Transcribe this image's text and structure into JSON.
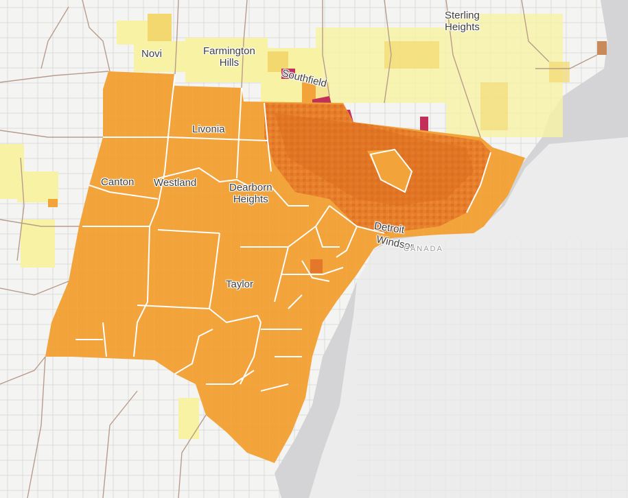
{
  "map": {
    "labels": {
      "novi": "Novi",
      "farmington_hills": "Farmington\nHills",
      "southfield": "Southfield",
      "sterling_heights": "Sterling\nHeights",
      "livonia": "Livonia",
      "canton": "Canton",
      "westland": "Westland",
      "dearborn_heights": "Dearborn\nHeights",
      "detroit": "Detroit",
      "windsor": "Windsor",
      "canada": "CANADA",
      "taylor": "Taylor"
    },
    "colors": {
      "land": "#f4f4f2",
      "water": "#d4d4d6",
      "road_local": "#cfcfcf",
      "boundary": "#b79c8c",
      "class_low": "#f7f2a4",
      "class_mid_low": "#f2d86e",
      "class_mid": "#f2a33a",
      "class_high": "#e3772a",
      "class_very_high": "#c2305a",
      "tract_outline": "#ffffff"
    }
  }
}
